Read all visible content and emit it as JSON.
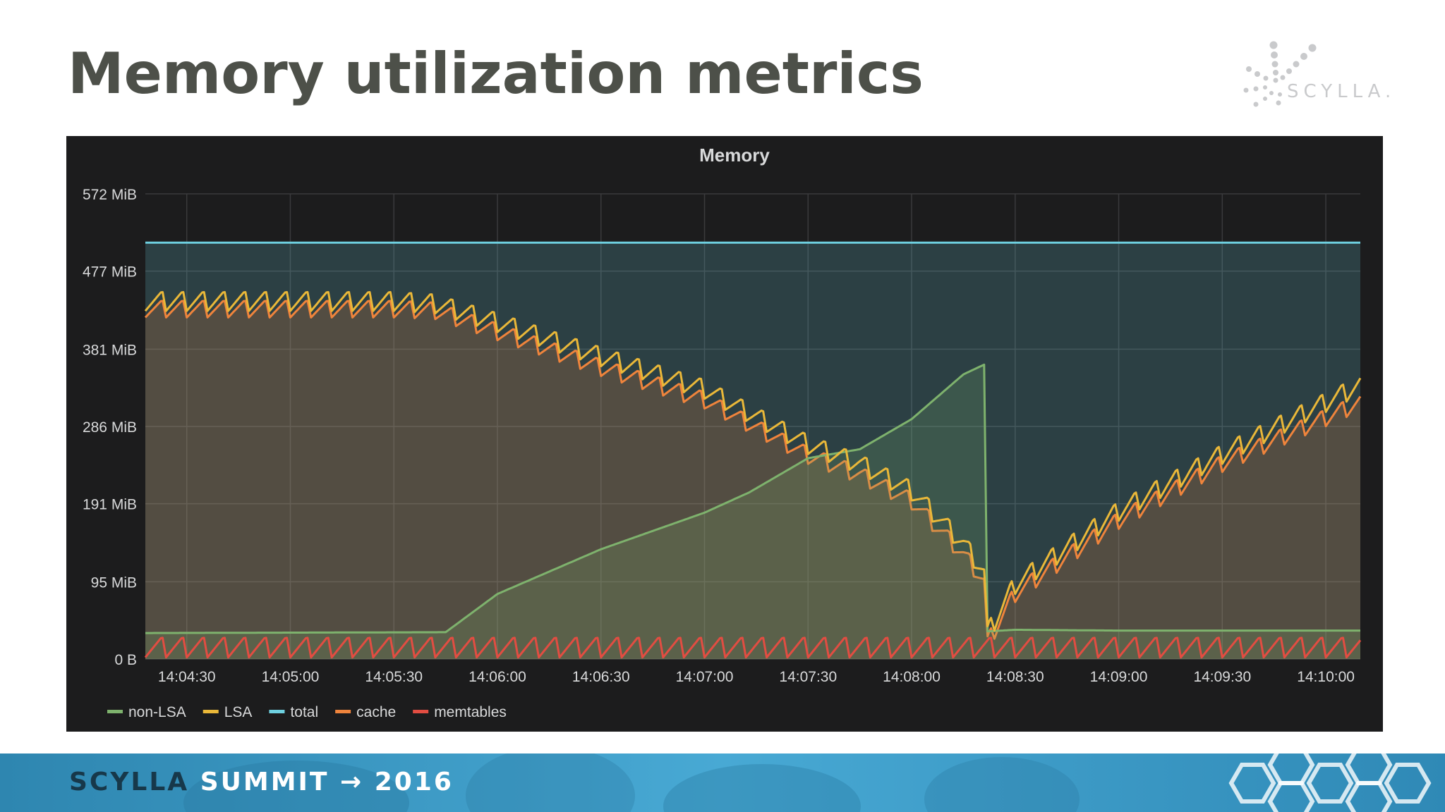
{
  "slide": {
    "title": "Memory utilization metrics",
    "logo_text": "SCYLLA.",
    "footer": {
      "brand": "SCYLLA",
      "event": "SUMMIT",
      "arrow": "→",
      "year": "2016"
    }
  },
  "colors": {
    "panel_bg": "#1c1c1d",
    "non_lsa": "#7eb26d",
    "lsa": "#eab839",
    "total": "#6ed0e0",
    "cache": "#ef843c",
    "memtables": "#e24d42",
    "footer_bg": "#3a9ec9"
  },
  "chart_data": {
    "type": "area",
    "title": "Memory",
    "y_unit": "MiB",
    "ylim": [
      0,
      572
    ],
    "y_ticks": [
      0,
      95,
      191,
      286,
      381,
      477,
      572
    ],
    "y_tick_labels": [
      "0 B",
      "95 MiB",
      "191 MiB",
      "286 MiB",
      "381 MiB",
      "477 MiB",
      "572 MiB"
    ],
    "x_range": [
      "14:04:18",
      "14:10:10"
    ],
    "x_tick_labels": [
      "14:04:30",
      "14:05:00",
      "14:05:30",
      "14:06:00",
      "14:06:30",
      "14:07:00",
      "14:07:30",
      "14:08:00",
      "14:08:30",
      "14:09:00",
      "14:09:30",
      "14:10:00"
    ],
    "grid": true,
    "legend_position": "bottom-left",
    "series": [
      {
        "name": "non-LSA",
        "color": "#7eb26d",
        "fill": true,
        "sawtooth_period_s": 0,
        "sawtooth_amplitude": 0,
        "x": [
          "14:04:18",
          "14:05:45",
          "14:06:00",
          "14:06:30",
          "14:07:00",
          "14:07:13",
          "14:07:30",
          "14:07:45",
          "14:08:00",
          "14:08:15",
          "14:08:21",
          "14:08:22",
          "14:08:30",
          "14:09:00",
          "14:10:10"
        ],
        "y": [
          32,
          33,
          80,
          135,
          180,
          205,
          247,
          258,
          295,
          350,
          362,
          34,
          36,
          35,
          35
        ]
      },
      {
        "name": "LSA",
        "color": "#eab839",
        "fill": false,
        "sawtooth_period_s": 6,
        "sawtooth_amplitude": 25,
        "x": [
          "14:04:18",
          "14:05:30",
          "14:05:42",
          "14:06:00",
          "14:06:30",
          "14:07:00",
          "14:07:30",
          "14:07:45",
          "14:08:00",
          "14:08:15",
          "14:08:21",
          "14:08:22",
          "14:08:30",
          "14:09:00",
          "14:09:30",
          "14:10:10"
        ],
        "y": [
          428,
          428,
          425,
          402,
          360,
          320,
          252,
          228,
          195,
          130,
          95,
          20,
          80,
          170,
          240,
          325
        ]
      },
      {
        "name": "total",
        "color": "#6ed0e0",
        "fill": true,
        "sawtooth_period_s": 0,
        "sawtooth_amplitude": 0,
        "x": [
          "14:04:18",
          "14:10:10"
        ],
        "y": [
          512,
          512
        ]
      },
      {
        "name": "cache",
        "color": "#ef843c",
        "fill": true,
        "sawtooth_period_s": 6,
        "sawtooth_amplitude": 22,
        "x": [
          "14:04:18",
          "14:05:30",
          "14:05:42",
          "14:06:00",
          "14:06:30",
          "14:07:00",
          "14:07:30",
          "14:07:45",
          "14:08:00",
          "14:08:15",
          "14:08:21",
          "14:08:22",
          "14:08:30",
          "14:09:00",
          "14:09:30",
          "14:10:10"
        ],
        "y": [
          420,
          420,
          418,
          392,
          348,
          308,
          240,
          216,
          184,
          118,
          85,
          10,
          70,
          160,
          230,
          305
        ]
      },
      {
        "name": "memtables",
        "color": "#e24d42",
        "fill": false,
        "sawtooth_period_s": 6,
        "sawtooth_amplitude": 26,
        "x": [
          "14:04:18",
          "14:10:10"
        ],
        "y": [
          2,
          2
        ]
      }
    ]
  }
}
